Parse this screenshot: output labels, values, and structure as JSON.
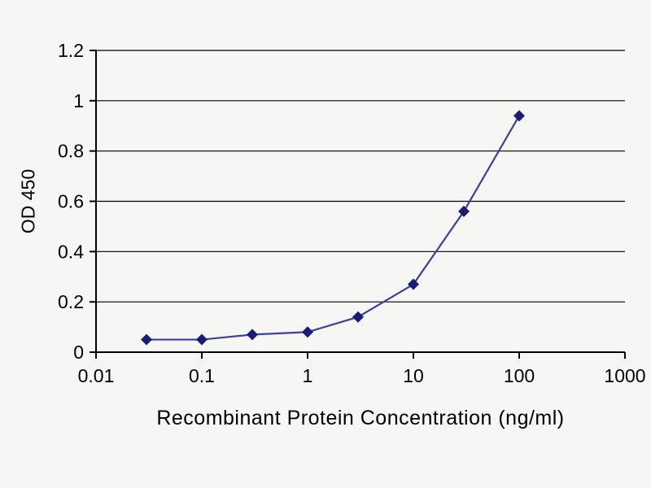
{
  "chart_data": {
    "type": "line",
    "title": "",
    "xlabel": "Recombinant Protein Concentration (ng/ml)",
    "ylabel": "OD 450",
    "x_scale": "log",
    "xlim": [
      0.01,
      1000
    ],
    "ylim": [
      0,
      1.2
    ],
    "xticks": [
      "0.01",
      "0.1",
      "1",
      "10",
      "100",
      "1000"
    ],
    "yticks": [
      "0",
      "0.2",
      "0.4",
      "0.6",
      "0.8",
      "1",
      "1.2"
    ],
    "grid": "horizontal",
    "legend": "none",
    "series": [
      {
        "name": "OD 450",
        "marker": "diamond",
        "x": [
          0.03,
          0.1,
          0.3,
          1,
          3,
          10,
          30,
          100
        ],
        "y": [
          0.05,
          0.05,
          0.07,
          0.08,
          0.14,
          0.27,
          0.56,
          0.94
        ]
      }
    ],
    "colors": {
      "line": "#3f3f9f",
      "marker": "#1c1c74",
      "grid": "#000000",
      "axis": "#000000",
      "text": "#000000",
      "background": "#f6f6f4"
    }
  }
}
